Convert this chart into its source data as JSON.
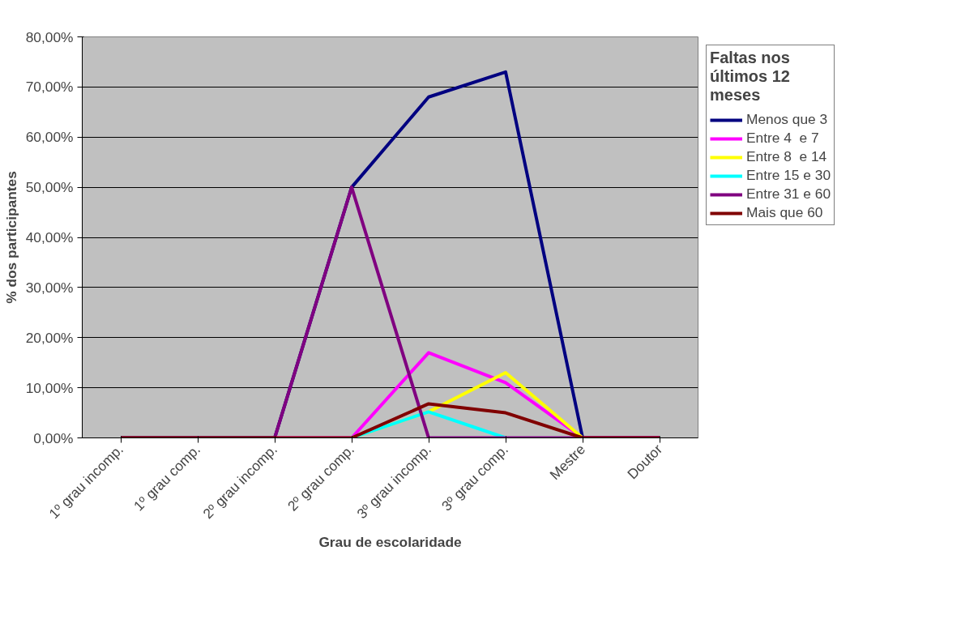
{
  "chart_data": {
    "type": "line",
    "xlabel": "Grau de escolaridade",
    "ylabel": "% dos participantes",
    "legend_title": "Faltas nos últimos 12 meses",
    "categories": [
      "1º grau incomp.",
      "1º grau comp.",
      "2º grau incomp.",
      "2º grau comp.",
      "3º grau incomp.",
      "3º grau comp.",
      "Mestre",
      "Doutor"
    ],
    "series": [
      {
        "name": "Menos que 3",
        "color": "#000080",
        "values": [
          0,
          0,
          0,
          50,
          68,
          73,
          0,
          0
        ]
      },
      {
        "name": "Entre 4  e 7",
        "color": "#ff00ff",
        "values": [
          null,
          null,
          0,
          0,
          17,
          11,
          0,
          0
        ]
      },
      {
        "name": "Entre 8  e 14",
        "color": "#ffff00",
        "values": [
          null,
          null,
          null,
          0,
          5.2,
          13,
          0,
          null
        ]
      },
      {
        "name": "Entre 15 e 30",
        "color": "#00ffff",
        "values": [
          null,
          null,
          null,
          0,
          5.2,
          0,
          null,
          null
        ]
      },
      {
        "name": "Entre 31 e 60",
        "color": "#800080",
        "values": [
          0,
          0,
          0,
          50,
          0,
          0,
          0,
          0
        ]
      },
      {
        "name": "Mais que 60",
        "color": "#800000",
        "values": [
          0,
          0,
          0,
          0,
          6.8,
          5,
          0,
          0
        ]
      }
    ],
    "ylim": [
      0,
      80
    ],
    "yticks": [
      {
        "value": 0,
        "label": "0,00%"
      },
      {
        "value": 10,
        "label": "10,00%"
      },
      {
        "value": 20,
        "label": "20,00%"
      },
      {
        "value": 30,
        "label": "30,00%"
      },
      {
        "value": 40,
        "label": "40,00%"
      },
      {
        "value": 50,
        "label": "50,00%"
      },
      {
        "value": 60,
        "label": "60,00%"
      },
      {
        "value": 70,
        "label": "70,00%"
      },
      {
        "value": 80,
        "label": "80,00%"
      }
    ],
    "grid": "y",
    "legend": "right",
    "marker": "none",
    "line_style": "solid"
  }
}
